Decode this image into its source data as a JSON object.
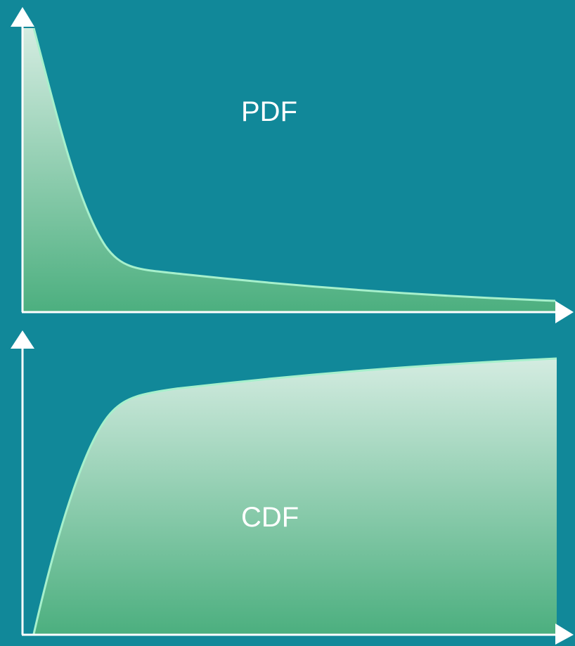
{
  "labels": {
    "pdf": "PDF",
    "cdf": "CDF"
  },
  "colors": {
    "background": "#118899",
    "axis": "#ffffff",
    "curve_stroke": "#a6f0cc",
    "fill_top": "#d4ece1",
    "fill_bottom": "#4caf7f"
  },
  "chart_data": [
    {
      "type": "area",
      "title": "PDF",
      "xlabel": "",
      "ylabel": "",
      "grid": false,
      "shape": "decaying (heavy-tailed) density: high at x=0, falls steeply, then a long flat tail"
    },
    {
      "type": "area",
      "title": "CDF",
      "xlabel": "",
      "ylabel": "",
      "grid": false,
      "shape": "cumulative distribution: starts at 0, rises steeply, then flattens approaching 1"
    }
  ]
}
